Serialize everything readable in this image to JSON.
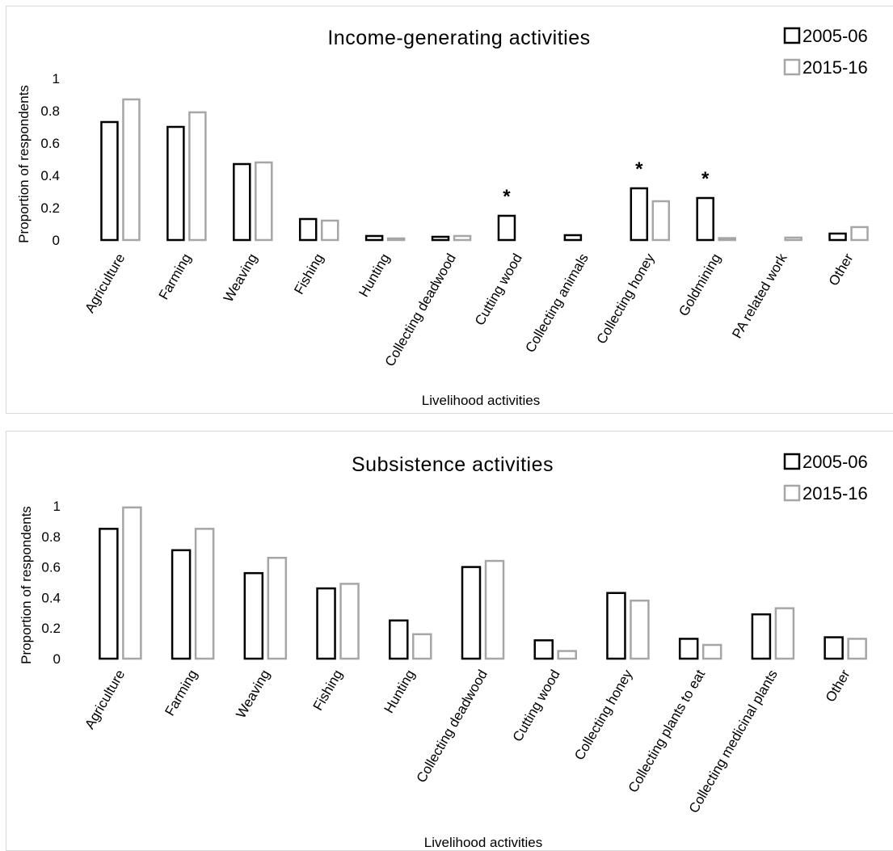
{
  "colors": {
    "series_2005": "#000000",
    "series_2015": "#a6a6a6"
  },
  "chart_data": [
    {
      "type": "bar",
      "title": "Income-generating activities",
      "xlabel": "Livelihood activities",
      "ylabel": "Proportion of respondents",
      "ylim": [
        0,
        1
      ],
      "yticks": [
        "0",
        "0.2",
        "0.4",
        "0.6",
        "0.8",
        "1"
      ],
      "categories": [
        "Agriculture",
        "Farming",
        "Weaving",
        "Fishing",
        "Hunting",
        "Collecting deadwood",
        "Cutting wood",
        "Collecting animals",
        "Collecting honey",
        "Goldmining",
        "PA related work",
        "Other"
      ],
      "series": [
        {
          "name": "2005-06",
          "values": [
            0.73,
            0.7,
            0.47,
            0.13,
            0.025,
            0.02,
            0.15,
            0.03,
            0.32,
            0.26,
            0.0,
            0.04
          ]
        },
        {
          "name": "2015-16",
          "values": [
            0.87,
            0.79,
            0.48,
            0.12,
            0.01,
            0.025,
            0.0,
            0.0,
            0.24,
            0.012,
            0.015,
            0.08
          ]
        }
      ],
      "annotations": [
        {
          "category": "Cutting wood",
          "text": "*"
        },
        {
          "category": "Collecting honey",
          "text": "*"
        },
        {
          "category": "Goldmining",
          "text": "*"
        }
      ],
      "grid": false,
      "legend": "top-right"
    },
    {
      "type": "bar",
      "title": "Subsistence activities",
      "xlabel": "Livelihood activities",
      "ylabel": "Proportion of respondents",
      "ylim": [
        0,
        1
      ],
      "yticks": [
        "0",
        "0.2",
        "0.4",
        "0.6",
        "0.8",
        "1"
      ],
      "categories": [
        "Agriculture",
        "Farming",
        "Weaving",
        "Fishing",
        "Hunting",
        "Collecting deadwood",
        "Cutting wood",
        "Collecting honey",
        "Collecting plants to eat",
        "Collecting medicinal plants",
        "Other"
      ],
      "series": [
        {
          "name": "2005-06",
          "values": [
            0.85,
            0.71,
            0.56,
            0.46,
            0.25,
            0.6,
            0.12,
            0.43,
            0.13,
            0.29,
            0.14
          ]
        },
        {
          "name": "2015-16",
          "values": [
            0.99,
            0.85,
            0.66,
            0.49,
            0.16,
            0.64,
            0.05,
            0.38,
            0.09,
            0.33,
            0.13
          ]
        }
      ],
      "annotations": [],
      "grid": false,
      "legend": "top-right"
    }
  ]
}
